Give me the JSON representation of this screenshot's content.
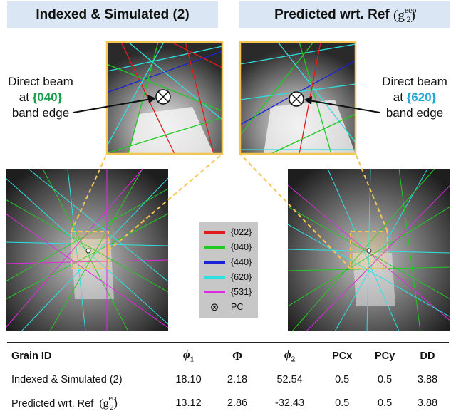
{
  "titles": {
    "left": "Indexed & Simulated (2)",
    "right_prefix": "Predicted wrt. Ref",
    "right_symbol_base": "g",
    "right_symbol_sup": "ecp",
    "right_symbol_sub": "2"
  },
  "callouts": {
    "left": {
      "line1": "Direct beam",
      "line2_prefix": "at ",
      "plane": "{040}",
      "line3": "band edge"
    },
    "right": {
      "line1": "Direct beam",
      "line2_prefix": "at ",
      "plane": "{620}",
      "line3": "band edge"
    }
  },
  "legend": [
    {
      "label": "{022}",
      "color": "#e01a1a"
    },
    {
      "label": "{040}",
      "color": "#22c922"
    },
    {
      "label": "{440}",
      "color": "#1a22d6"
    },
    {
      "label": "{620}",
      "color": "#2fe0e0"
    },
    {
      "label": "{531}",
      "color": "#e02ae0"
    }
  ],
  "legend_pc": "PC",
  "colors": {
    "title_bg": "#dae6f3",
    "highlight": "#f5c453",
    "legend_bg": "#c7c7c7"
  },
  "table": {
    "headers": [
      "Grain ID",
      "ϕ",
      "1",
      "Φ",
      "ϕ",
      "2",
      "PCx",
      "PCy",
      "DD"
    ],
    "rows": [
      {
        "label": "Indexed & Simulated (2)",
        "phi1": "18.10",
        "Phi": "2.18",
        "phi2": "52.54",
        "pcx": "0.5",
        "pcy": "0.5",
        "dd": "3.88"
      },
      {
        "label_prefix": "Predicted wrt. Ref",
        "sym_base": "g",
        "sym_sup": "ecp",
        "sym_sub": "2",
        "phi1": "13.12",
        "Phi": "2.86",
        "phi2": "-32.43",
        "pcx": "0.5",
        "pcy": "0.5",
        "dd": "3.88"
      }
    ]
  }
}
